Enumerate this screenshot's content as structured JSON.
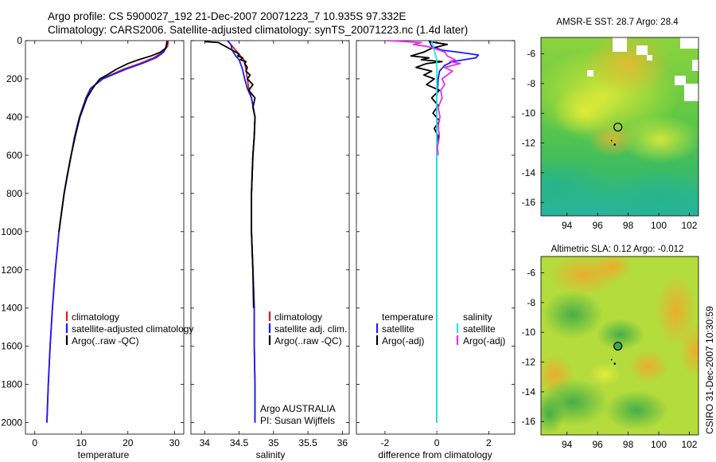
{
  "header": {
    "title_line1": "Argo profile: CS 5900027_192 21-Dec-2007 20071223_7 10.935S 97.332E",
    "title_line2": "Climatology: CARS2006. Satellite-adjusted climatology: synTS_20071223.nc (1.4d later)"
  },
  "side_label": "CSIRO 31-Dec-2007 10:30:59",
  "colors": {
    "climatology": "#e41a1c",
    "satellite": "#1a1aff",
    "argo": "#000000",
    "cyan": "#22e5e5",
    "magenta": "#e62ee6"
  },
  "chart_data": [
    {
      "type": "line",
      "name": "temperature-panel",
      "xlabel": "temperature",
      "ylabel": "",
      "xlim": [
        -2,
        32
      ],
      "ylim": [
        2060,
        0
      ],
      "xticks": [
        0,
        10,
        20,
        30
      ],
      "xtick_labels": [
        "0",
        "10",
        "20",
        "30"
      ],
      "yticks": [
        0,
        200,
        400,
        600,
        800,
        1000,
        1200,
        1400,
        1600,
        1800,
        2000
      ],
      "ytick_labels": [
        "0",
        "200",
        "400",
        "600",
        "800",
        "1000",
        "1200",
        "1400",
        "1600",
        "1800",
        "2000"
      ],
      "legend": [
        "climatology",
        "satellite-adjusted climatology",
        "Argo(..raw -QC)"
      ],
      "series": [
        {
          "name": "climatology",
          "color": "#e41a1c",
          "depth": [
            0,
            30,
            60,
            90,
            120,
            150,
            200,
            250,
            300,
            400,
            500,
            600,
            800,
            1000,
            1200,
            1400,
            1600,
            1800,
            2000
          ],
          "values": [
            28.7,
            28.5,
            27.5,
            25.5,
            22.5,
            19.0,
            14.5,
            12.0,
            11.0,
            9.6,
            8.6,
            7.8,
            6.3,
            5.2,
            4.4,
            3.8,
            3.3,
            2.9,
            2.6
          ]
        },
        {
          "name": "satellite-adjusted climatology",
          "color": "#1a1aff",
          "depth": [
            0,
            30,
            60,
            90,
            120,
            150,
            200,
            250,
            300,
            400,
            500,
            600,
            800,
            1000,
            1200,
            1400,
            1600,
            1800,
            2000
          ],
          "values": [
            28.4,
            28.3,
            27.7,
            26.0,
            23.0,
            19.5,
            14.6,
            12.0,
            11.0,
            9.6,
            8.6,
            7.8,
            6.3,
            5.2,
            4.4,
            3.8,
            3.3,
            2.9,
            2.6
          ]
        },
        {
          "name": "Argo(..raw -QC)",
          "color": "#000000",
          "depth": [
            5,
            20,
            40,
            60,
            80,
            100,
            120,
            150,
            180,
            200,
            230,
            260,
            300,
            400,
            500,
            600,
            700,
            800,
            1000
          ],
          "values": [
            28.4,
            28.3,
            28.1,
            27.0,
            25.0,
            22.3,
            20.0,
            17.5,
            15.5,
            14.0,
            13.0,
            12.2,
            11.2,
            9.7,
            8.7,
            7.8,
            7.0,
            6.3,
            5.2
          ]
        }
      ]
    },
    {
      "type": "line",
      "name": "salinity-panel",
      "xlabel": "salinity",
      "xlim": [
        33.8,
        36.1
      ],
      "ylim": [
        2060,
        0
      ],
      "xticks": [
        34,
        34.5,
        35,
        35.5,
        36
      ],
      "xtick_labels": [
        "34",
        "34.5",
        "35",
        "35.5",
        "36"
      ],
      "legend": [
        "climatology",
        "satellite adj. clim.",
        "Argo(..raw -QC)"
      ],
      "annotations": [
        "Argo AUSTRALIA",
        "PI: Susan Wijffels"
      ],
      "series": [
        {
          "name": "climatology",
          "color": "#e41a1c",
          "depth": [
            0,
            20,
            50,
            80,
            100,
            150,
            200,
            250,
            300,
            400,
            500,
            600,
            800,
            1000,
            1200,
            1400,
            1600,
            1800,
            2000
          ],
          "values": [
            34.33,
            34.38,
            34.45,
            34.52,
            34.57,
            34.6,
            34.62,
            34.64,
            34.68,
            34.73,
            34.72,
            34.7,
            34.68,
            34.68,
            34.7,
            34.72,
            34.72,
            34.73,
            34.73
          ]
        },
        {
          "name": "satellite adj. clim.",
          "color": "#1a1aff",
          "depth": [
            0,
            20,
            50,
            80,
            100,
            150,
            200,
            250,
            300,
            400,
            500,
            600,
            800,
            1000,
            1200,
            1400,
            1600,
            1800,
            2000
          ],
          "values": [
            34.33,
            34.38,
            34.4,
            34.45,
            34.5,
            34.55,
            34.58,
            34.62,
            34.68,
            34.73,
            34.72,
            34.7,
            34.68,
            34.68,
            34.7,
            34.72,
            34.72,
            34.73,
            34.73
          ]
        },
        {
          "name": "Argo(..raw -QC)",
          "color": "#000000",
          "depth": [
            5,
            10,
            20,
            30,
            40,
            50,
            60,
            70,
            80,
            90,
            100,
            110,
            120,
            140,
            160,
            180,
            200,
            230,
            260,
            300,
            350,
            400,
            500,
            600,
            800,
            1000,
            1200,
            1400
          ],
          "values": [
            34.0,
            34.2,
            34.25,
            34.3,
            34.35,
            34.4,
            34.45,
            34.5,
            34.48,
            34.55,
            34.52,
            34.6,
            34.58,
            34.62,
            34.6,
            34.66,
            34.62,
            34.7,
            34.64,
            34.73,
            34.7,
            34.73,
            34.72,
            34.7,
            34.68,
            34.68,
            34.7,
            34.71
          ]
        }
      ]
    },
    {
      "type": "line",
      "name": "difference-panel",
      "xlabel": "difference from climatology",
      "xlim": [
        -3.1,
        3.0
      ],
      "ylim": [
        2060,
        0
      ],
      "xticks": [
        -2,
        0,
        2
      ],
      "xtick_labels": [
        "-2",
        "0",
        "2"
      ],
      "legend_left_title": "temperature",
      "legend_right_title": "salinity",
      "legend": [
        "satellite",
        "Argo(-adj)",
        "satellite",
        "Argo(-adj)"
      ],
      "series": [
        {
          "name": "temperature satellite",
          "color": "#1a1aff",
          "depth": [
            0,
            30,
            50,
            60,
            75,
            90,
            110,
            130,
            160,
            200,
            300,
            400,
            2000
          ],
          "values": [
            -0.3,
            -0.2,
            0.2,
            0.8,
            1.6,
            1.5,
            0.6,
            0.3,
            0.1,
            0.05,
            0,
            0,
            0
          ]
        },
        {
          "name": "temperature Argo(-adj)",
          "color": "#000000",
          "depth": [
            5,
            20,
            40,
            60,
            80,
            90,
            100,
            110,
            120,
            140,
            160,
            180,
            200,
            230,
            260,
            300,
            340,
            380,
            420,
            460,
            500,
            560
          ],
          "values": [
            -0.3,
            0.4,
            -0.2,
            -0.5,
            -1.0,
            -0.3,
            -0.6,
            0.2,
            -0.4,
            -0.8,
            -0.2,
            -0.5,
            -0.1,
            -0.4,
            0.1,
            -0.2,
            0.05,
            -0.15,
            0.1,
            -0.1,
            0.05,
            0
          ]
        },
        {
          "name": "salinity satellite",
          "color": "#22e5e5",
          "depth": [
            0,
            50,
            100,
            150,
            200,
            300,
            400,
            1000,
            2000
          ],
          "values": [
            -0.2,
            -0.1,
            0,
            0,
            0,
            0,
            0,
            0,
            0
          ]
        },
        {
          "name": "salinity Argo(-adj)",
          "color": "#e62ee6",
          "depth": [
            0,
            10,
            20,
            30,
            40,
            60,
            80,
            100,
            110,
            120,
            140,
            160,
            180,
            200,
            230,
            260,
            300,
            350,
            400,
            450,
            500,
            560,
            600
          ],
          "values": [
            -1.9,
            -0.6,
            -0.9,
            -0.4,
            -0.1,
            0.3,
            0.4,
            0.7,
            0.5,
            0.9,
            0.3,
            0.6,
            0.4,
            0.2,
            0.3,
            0.15,
            0.2,
            0.05,
            0.12,
            0.05,
            0.1,
            0.02,
            0.05
          ]
        }
      ]
    },
    {
      "type": "heatmap",
      "name": "sst-map",
      "title": "AMSR-E SST: 28.7 Argo: 28.4",
      "xlim": [
        92.3,
        102.6
      ],
      "ylim": [
        -16.9,
        -4.9
      ],
      "xtick_labels": [
        "94",
        "96",
        "98",
        "100",
        "102"
      ],
      "ytick_labels": [
        "-6",
        "-8",
        "-10",
        "-12",
        "-14",
        "-16"
      ],
      "marker_lon": 97.33,
      "marker_lat": -10.93
    },
    {
      "type": "heatmap",
      "name": "sla-map",
      "title": "Altimetric SLA: 0.12 Argo: -0.012",
      "xlim": [
        92.3,
        102.6
      ],
      "ylim": [
        -16.9,
        -4.9
      ],
      "xtick_labels": [
        "94",
        "96",
        "98",
        "100",
        "102"
      ],
      "ytick_labels": [
        "-6",
        "-8",
        "-10",
        "-12",
        "-14",
        "-16"
      ],
      "marker_lon": 97.33,
      "marker_lat": -10.93
    }
  ]
}
